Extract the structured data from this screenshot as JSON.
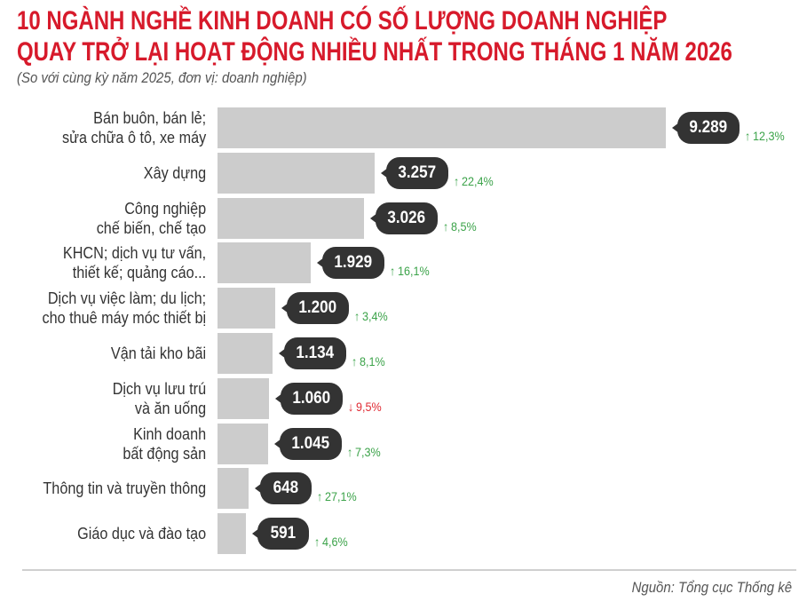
{
  "header": {
    "title_line1": "10 NGÀNH NGHỀ KINH DOANH CÓ SỐ LƯỢNG DOANH NGHIỆP",
    "title_line2": "QUAY TRỞ LẠI HOẠT ĐỘNG NHIỀU NHẤT TRONG THÁNG 1 NĂM 2026",
    "subtitle": "(So với cùng kỳ năm 2025, đơn vị: doanh nghiệp)"
  },
  "footer": {
    "source": "Nguồn: Tổng cục Thống kê"
  },
  "colors": {
    "title": "#d71a2b",
    "bar": "#cccccc",
    "bubble": "#333333",
    "increase": "#3ca34a",
    "decrease": "#e02a33"
  },
  "chart_data": {
    "type": "bar",
    "orientation": "horizontal",
    "title": "10 NGÀNH NGHỀ KINH DOANH CÓ SỐ LƯỢNG DOANH NGHIỆP QUAY TRỞ LẠI HOẠT ĐỘNG NHIỀU NHẤT TRONG THÁNG 1 NĂM 2026",
    "subtitle": "(So với cùng kỳ năm 2025, đơn vị: doanh nghiệp)",
    "xlabel": "",
    "ylabel": "",
    "unit": "doanh nghiệp",
    "grid": false,
    "legend": "none",
    "categories": [
      [
        "Bán buôn, bán lẻ;",
        "sửa chữa ô tô, xe máy"
      ],
      [
        "Xây dựng"
      ],
      [
        "Công nghiệp",
        "chế biến, chế tạo"
      ],
      [
        "KHCN; dịch vụ tư vấn,",
        "thiết kế; quảng cáo..."
      ],
      [
        "Dịch vụ việc làm; du lịch;",
        "cho thuê máy móc thiết bị"
      ],
      [
        "Vận tải kho bãi"
      ],
      [
        "Dịch vụ lưu trú",
        "và ăn uống"
      ],
      [
        "Kinh doanh",
        "bất động sản"
      ],
      [
        "Thông tin và truyền thông"
      ],
      [
        "Giáo dục và đào tạo"
      ]
    ],
    "values": [
      9289,
      3257,
      3026,
      1929,
      1200,
      1134,
      1060,
      1045,
      648,
      591
    ],
    "value_labels": [
      "9.289",
      "3.257",
      "3.026",
      "1.929",
      "1.200",
      "1.134",
      "1.060",
      "1.045",
      "648",
      "591"
    ],
    "change_pct": [
      12.3,
      22.4,
      8.5,
      16.1,
      3.4,
      8.1,
      -9.5,
      7.3,
      27.1,
      4.6
    ],
    "change_labels": [
      "12,3%",
      "22,4%",
      "8,5%",
      "16,1%",
      "3,4%",
      "8,1%",
      "9,5%",
      "7,3%",
      "27,1%",
      "4,6%"
    ],
    "change_direction": [
      "up",
      "up",
      "up",
      "up",
      "up",
      "up",
      "down",
      "up",
      "up",
      "up"
    ],
    "source": "Nguồn: Tổng cục Thống kê"
  }
}
